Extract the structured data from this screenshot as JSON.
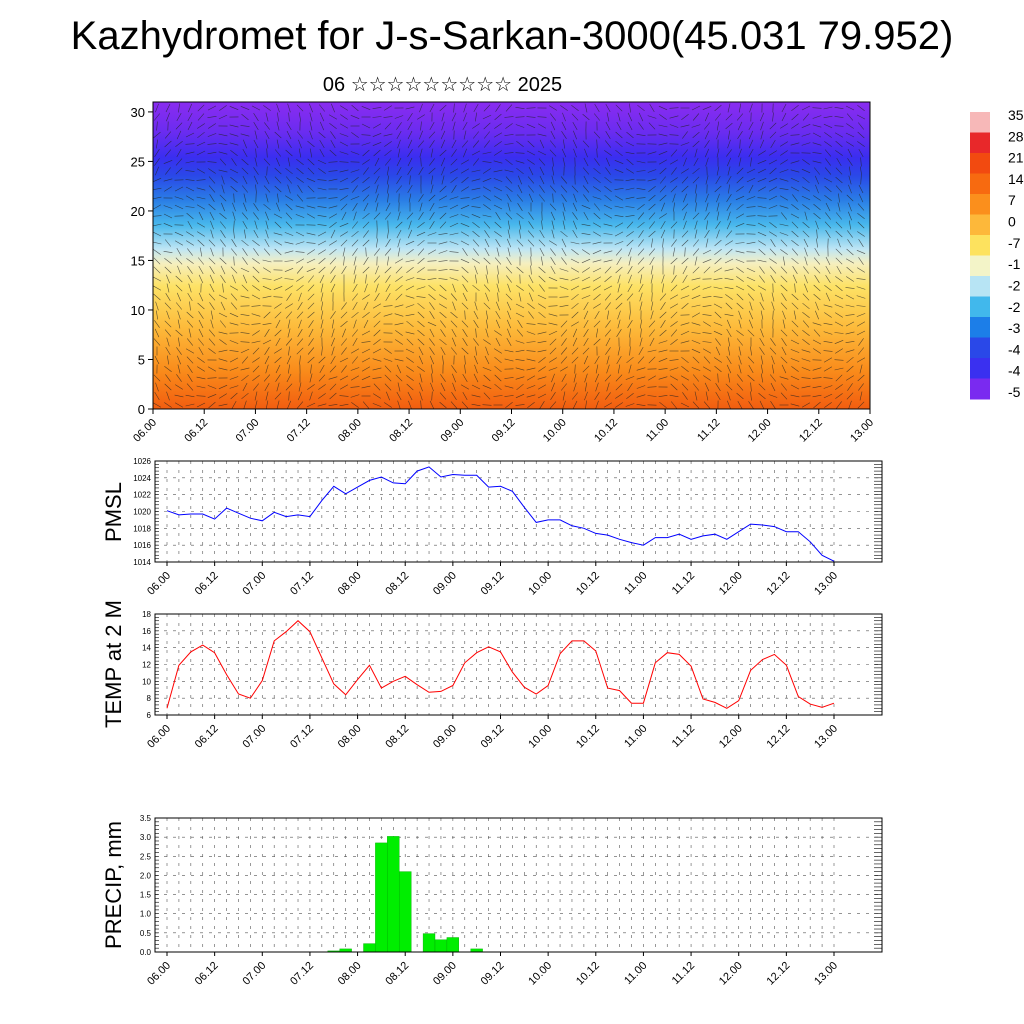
{
  "title": "Kazhydromet for J-s-Sarkan-3000(45.031 79.952)",
  "subtitle": "06 ☆☆☆☆☆☆☆☆☆ 2025",
  "chart_data": [
    {
      "type": "heatmap",
      "name": "cross-section",
      "y_ticks": [
        "0",
        "5",
        "10",
        "15",
        "20",
        "25",
        "30"
      ],
      "ylim": [
        0,
        31
      ],
      "x_ticks": [
        "06.00",
        "06.12",
        "07.00",
        "07.12",
        "08.00",
        "08.12",
        "09.00",
        "09.12",
        "10.00",
        "10.12",
        "11.00",
        "11.12",
        "12.00",
        "12.12",
        "13.00"
      ],
      "colorbar_labels": [
        "35",
        "28",
        "21",
        "14",
        "7",
        "0",
        "-7",
        "-1",
        "-2",
        "-2",
        "-3",
        "-4",
        "-4",
        "-5"
      ],
      "colorbar_colors": [
        "#f7b8b8",
        "#e8282a",
        "#f24a10",
        "#f76a10",
        "#fb8f1c",
        "#fdb83a",
        "#fde25e",
        "#f3f4c8",
        "#b7e4f4",
        "#41b8ec",
        "#1c7ee8",
        "#2a48e8",
        "#3a30f0",
        "#7a2af0"
      ]
    },
    {
      "type": "line",
      "ylabel": "PMSL",
      "ylim": [
        1014,
        1026
      ],
      "y_ticks": [
        "1014",
        "1016",
        "1018",
        "1020",
        "1022",
        "1024",
        "1026"
      ],
      "x_ticks": [
        "06.00",
        "06.12",
        "07.00",
        "07.12",
        "08.00",
        "08.12",
        "09.00",
        "09.12",
        "10.00",
        "10.12",
        "11.00",
        "11.12",
        "12.00",
        "12.12",
        "13.00"
      ],
      "color": "#0000ff",
      "values": [
        1020.1,
        1019.6,
        1019.7,
        1019.7,
        1019.1,
        1020.4,
        1019.8,
        1019.2,
        1018.9,
        1019.9,
        1019.4,
        1019.6,
        1019.4,
        1021.3,
        1023.0,
        1022.1,
        1022.9,
        1023.7,
        1024.1,
        1023.4,
        1023.3,
        1024.8,
        1025.3,
        1024.1,
        1024.4,
        1024.3,
        1024.3,
        1022.9,
        1023.0,
        1022.4,
        1020.5,
        1018.7,
        1019.0,
        1019.0,
        1018.3,
        1018.0,
        1017.4,
        1017.2,
        1016.7,
        1016.3,
        1016.0,
        1016.9,
        1016.9,
        1017.3,
        1016.7,
        1017.1,
        1017.3,
        1016.7,
        1017.6,
        1018.5,
        1018.4,
        1018.2,
        1017.6,
        1017.6,
        1016.4,
        1014.8,
        1014.1
      ]
    },
    {
      "type": "line",
      "ylabel": "TEMP at 2 M",
      "ylim": [
        6,
        18
      ],
      "y_ticks": [
        "6",
        "8",
        "10",
        "12",
        "14",
        "16",
        "18"
      ],
      "x_ticks": [
        "06.00",
        "06.12",
        "07.00",
        "07.12",
        "08.00",
        "08.12",
        "09.00",
        "09.12",
        "10.00",
        "10.12",
        "11.00",
        "11.12",
        "12.00",
        "12.12",
        "13.00"
      ],
      "color": "#ff0000",
      "values": [
        6.8,
        11.9,
        13.5,
        14.3,
        13.4,
        10.8,
        8.5,
        8.0,
        10.1,
        14.8,
        15.9,
        17.2,
        15.9,
        12.8,
        9.7,
        8.4,
        10.2,
        11.9,
        9.2,
        10.0,
        10.6,
        9.6,
        8.7,
        8.8,
        9.5,
        12.2,
        13.4,
        14.1,
        13.5,
        11.1,
        9.3,
        8.5,
        9.5,
        13.3,
        14.8,
        14.8,
        13.6,
        9.2,
        8.9,
        7.4,
        7.4,
        12.2,
        13.4,
        13.2,
        11.8,
        7.9,
        7.5,
        6.8,
        7.7,
        11.3,
        12.6,
        13.2,
        11.9,
        8.2,
        7.3,
        6.9,
        7.4
      ]
    },
    {
      "type": "bar",
      "ylabel": "PRECIP, mm",
      "ylim": [
        0,
        3.5
      ],
      "y_ticks": [
        "0.0",
        "0.5",
        "1.0",
        "1.5",
        "2.0",
        "2.5",
        "3.0",
        "3.5"
      ],
      "x_ticks": [
        "06.00",
        "06.12",
        "07.00",
        "07.12",
        "08.00",
        "08.12",
        "09.00",
        "09.12",
        "10.00",
        "10.12",
        "11.00",
        "11.12",
        "12.00",
        "12.12",
        "13.00"
      ],
      "color": "#00ee00",
      "values": [
        0,
        0,
        0,
        0,
        0,
        0,
        0,
        0,
        0,
        0,
        0,
        0,
        0,
        0,
        0.03,
        0.08,
        0,
        0.22,
        2.85,
        3.02,
        2.1,
        0,
        0.48,
        0.32,
        0.38,
        0,
        0.08,
        0,
        0,
        0,
        0,
        0,
        0,
        0,
        0,
        0,
        0,
        0,
        0,
        0,
        0,
        0,
        0,
        0,
        0,
        0,
        0,
        0,
        0,
        0,
        0,
        0,
        0,
        0,
        0,
        0,
        0
      ]
    }
  ]
}
